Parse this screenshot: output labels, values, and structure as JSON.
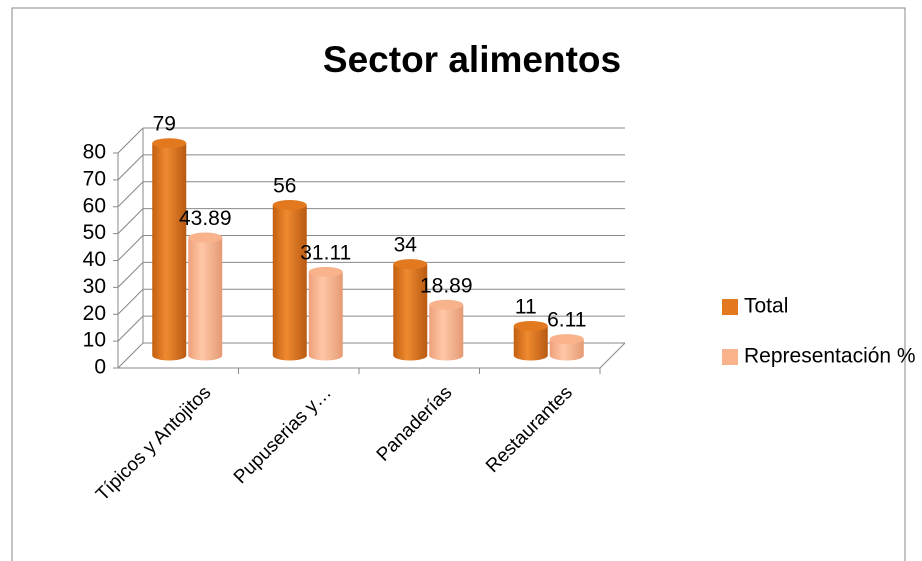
{
  "chart_data": {
    "type": "bar3d",
    "title": "Sector alimentos",
    "categories": [
      "Típicos y Antojitos",
      "Pupuserias y…",
      "Panaderías",
      "Restaurantes"
    ],
    "series": [
      {
        "name": "Total",
        "color": "#e2791f",
        "values": [
          79,
          56,
          34,
          11
        ]
      },
      {
        "name": "Representación %",
        "color": "#f9b38c",
        "values": [
          43.89,
          31.11,
          18.89,
          6.11
        ]
      }
    ],
    "ylim": [
      0,
      80
    ],
    "yticks": [
      0,
      10,
      20,
      30,
      40,
      50,
      60,
      70,
      80
    ],
    "grid": true,
    "legend": "right"
  }
}
